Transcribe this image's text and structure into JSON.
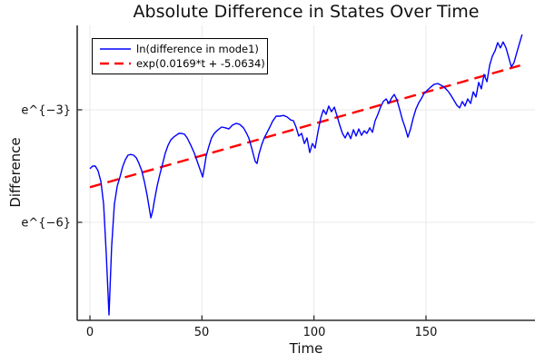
{
  "title": "Absolute Difference in States Over Time",
  "x_axis": {
    "label": "Time",
    "tick_labels": [
      "0",
      "50",
      "100",
      "150"
    ]
  },
  "y_axis": {
    "label": "Difference",
    "tick_labels": [
      "e^{−3}",
      "e^{−6}"
    ]
  },
  "legend": {
    "entries": [
      {
        "label": "ln(difference in mode1)",
        "color": "#0000ff",
        "style": "solid"
      },
      {
        "label": "exp(0.0169*t + -5.0634)",
        "color": "#ff0000",
        "style": "dashed"
      }
    ]
  },
  "colors": {
    "series1": "#0000ff",
    "series2": "#ff0000",
    "grid": "#e8e8e8",
    "axis": "#2f2f2f",
    "text": "#111111"
  },
  "chart_data": {
    "type": "line",
    "title": "Absolute Difference in States Over Time",
    "xlabel": "Time",
    "ylabel": "Difference",
    "y_scale": "log (natural), values stored as ln(difference)",
    "x_range": [
      -5.68,
      198.65
    ],
    "y_ln_range": [
      -8.613,
      -0.75
    ],
    "x_ticks": [
      0,
      50,
      100,
      150
    ],
    "y_ticks": [
      {
        "label": "e^{−3}",
        "ln_value": -3
      },
      {
        "label": "e^{−6}",
        "ln_value": -6
      }
    ],
    "grid": true,
    "legend_position": "top-left",
    "series": [
      {
        "name": "ln(difference in mode1)",
        "color": "#0000ff",
        "style": "solid",
        "width": 1.4,
        "points": [
          [
            0,
            -4.57
          ],
          [
            1.2,
            -4.5
          ],
          [
            2.4,
            -4.5
          ],
          [
            3.6,
            -4.62
          ],
          [
            4.9,
            -4.91
          ],
          [
            6.1,
            -5.52
          ],
          [
            7.3,
            -6.85
          ],
          [
            8.5,
            -8.47
          ],
          [
            9.7,
            -6.65
          ],
          [
            10.9,
            -5.52
          ],
          [
            12.2,
            -5.03
          ],
          [
            13.4,
            -4.79
          ],
          [
            14.6,
            -4.52
          ],
          [
            15.8,
            -4.33
          ],
          [
            17,
            -4.21
          ],
          [
            18.2,
            -4.19
          ],
          [
            19.5,
            -4.21
          ],
          [
            20.7,
            -4.28
          ],
          [
            21.9,
            -4.43
          ],
          [
            23.1,
            -4.62
          ],
          [
            24.3,
            -4.91
          ],
          [
            25.5,
            -5.27
          ],
          [
            26.4,
            -5.59
          ],
          [
            27.2,
            -5.88
          ],
          [
            28,
            -5.69
          ],
          [
            28.8,
            -5.42
          ],
          [
            30,
            -5.03
          ],
          [
            31.2,
            -4.72
          ],
          [
            32.4,
            -4.45
          ],
          [
            33.6,
            -4.16
          ],
          [
            34.9,
            -3.94
          ],
          [
            36.1,
            -3.8
          ],
          [
            37.3,
            -3.73
          ],
          [
            38.5,
            -3.68
          ],
          [
            39.7,
            -3.63
          ],
          [
            40.9,
            -3.63
          ],
          [
            42.2,
            -3.65
          ],
          [
            43.4,
            -3.75
          ],
          [
            45,
            -3.94
          ],
          [
            46.6,
            -4.16
          ],
          [
            48.2,
            -4.43
          ],
          [
            49.5,
            -4.65
          ],
          [
            50.3,
            -4.79
          ],
          [
            51.1,
            -4.52
          ],
          [
            51.9,
            -4.23
          ],
          [
            53.1,
            -3.97
          ],
          [
            54.3,
            -3.75
          ],
          [
            55.5,
            -3.63
          ],
          [
            57.2,
            -3.53
          ],
          [
            58.8,
            -3.46
          ],
          [
            60.4,
            -3.48
          ],
          [
            62,
            -3.51
          ],
          [
            63.6,
            -3.41
          ],
          [
            65.3,
            -3.36
          ],
          [
            66.9,
            -3.39
          ],
          [
            68.5,
            -3.48
          ],
          [
            69.7,
            -3.6
          ],
          [
            70.9,
            -3.75
          ],
          [
            72.2,
            -4.02
          ],
          [
            73,
            -4.21
          ],
          [
            73.8,
            -4.38
          ],
          [
            74.6,
            -4.43
          ],
          [
            75.4,
            -4.19
          ],
          [
            76.6,
            -3.94
          ],
          [
            77.8,
            -3.75
          ],
          [
            79.1,
            -3.6
          ],
          [
            80.3,
            -3.46
          ],
          [
            81.5,
            -3.31
          ],
          [
            83.1,
            -3.17
          ],
          [
            84.7,
            -3.17
          ],
          [
            86.4,
            -3.15
          ],
          [
            88,
            -3.19
          ],
          [
            89.6,
            -3.27
          ],
          [
            90.8,
            -3.29
          ],
          [
            92,
            -3.46
          ],
          [
            93.2,
            -3.7
          ],
          [
            94.5,
            -3.63
          ],
          [
            95.7,
            -3.9
          ],
          [
            96.9,
            -3.75
          ],
          [
            98.1,
            -4.14
          ],
          [
            99.3,
            -3.9
          ],
          [
            100.5,
            -4.02
          ],
          [
            101.8,
            -3.58
          ],
          [
            103,
            -3.22
          ],
          [
            104.2,
            -3
          ],
          [
            105.4,
            -3.12
          ],
          [
            106.6,
            -2.9
          ],
          [
            107.8,
            -3.05
          ],
          [
            109.1,
            -2.93
          ],
          [
            110.3,
            -3.17
          ],
          [
            111.5,
            -3.41
          ],
          [
            112.7,
            -3.63
          ],
          [
            113.9,
            -3.75
          ],
          [
            115.1,
            -3.6
          ],
          [
            116.4,
            -3.77
          ],
          [
            117.6,
            -3.53
          ],
          [
            118.8,
            -3.7
          ],
          [
            120,
            -3.51
          ],
          [
            121.2,
            -3.68
          ],
          [
            122.4,
            -3.56
          ],
          [
            123.6,
            -3.63
          ],
          [
            124.9,
            -3.48
          ],
          [
            126.1,
            -3.6
          ],
          [
            127.3,
            -3.29
          ],
          [
            128.5,
            -3.12
          ],
          [
            129.7,
            -2.93
          ],
          [
            130.9,
            -2.78
          ],
          [
            132.2,
            -2.71
          ],
          [
            133.4,
            -2.83
          ],
          [
            134.6,
            -2.69
          ],
          [
            135.8,
            -2.59
          ],
          [
            137,
            -2.73
          ],
          [
            138.2,
            -2.98
          ],
          [
            139.5,
            -3.27
          ],
          [
            140.7,
            -3.48
          ],
          [
            141.9,
            -3.73
          ],
          [
            143.1,
            -3.51
          ],
          [
            144.3,
            -3.22
          ],
          [
            145.5,
            -2.98
          ],
          [
            146.8,
            -2.81
          ],
          [
            148,
            -2.69
          ],
          [
            149.2,
            -2.56
          ],
          [
            150.4,
            -2.49
          ],
          [
            152,
            -2.4
          ],
          [
            153.6,
            -2.32
          ],
          [
            155.3,
            -2.3
          ],
          [
            156.9,
            -2.35
          ],
          [
            158.5,
            -2.42
          ],
          [
            160.1,
            -2.52
          ],
          [
            161.4,
            -2.64
          ],
          [
            162.6,
            -2.76
          ],
          [
            163.8,
            -2.88
          ],
          [
            165,
            -2.95
          ],
          [
            166.2,
            -2.78
          ],
          [
            167.4,
            -2.9
          ],
          [
            168.6,
            -2.71
          ],
          [
            169.9,
            -2.83
          ],
          [
            171.1,
            -2.52
          ],
          [
            172.3,
            -2.66
          ],
          [
            173.5,
            -2.27
          ],
          [
            174.7,
            -2.44
          ],
          [
            175.9,
            -2.06
          ],
          [
            177.2,
            -2.25
          ],
          [
            178.4,
            -1.81
          ],
          [
            179.6,
            -1.57
          ],
          [
            180.8,
            -1.43
          ],
          [
            182,
            -1.21
          ],
          [
            183.2,
            -1.35
          ],
          [
            184.4,
            -1.19
          ],
          [
            185.7,
            -1.35
          ],
          [
            186.9,
            -1.6
          ],
          [
            188.1,
            -1.86
          ],
          [
            189.3,
            -1.74
          ],
          [
            190.5,
            -1.48
          ],
          [
            191.7,
            -1.23
          ],
          [
            192.9,
            -0.99
          ]
        ]
      },
      {
        "name": "exp(0.0169*t + -5.0634)",
        "color": "#ff0000",
        "style": "dashed",
        "width": 2.4,
        "fit": {
          "slope": 0.0169,
          "intercept": -5.0634
        },
        "points": [
          [
            0,
            -5.0634
          ],
          [
            192,
            -1.8186
          ]
        ]
      }
    ]
  }
}
